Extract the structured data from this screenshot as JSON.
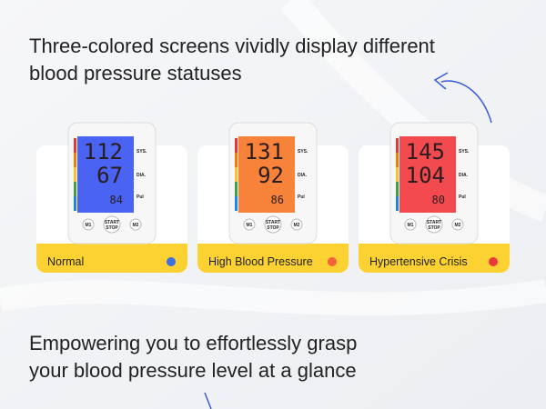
{
  "headline": "Three-colored screens vividly display different blood pressure statuses",
  "footer": "Empowering you to effortlessly grasp your blood pressure level at a glance",
  "device_labels": {
    "sys": "SYS.",
    "dia": "DIA.",
    "pul": "Pul",
    "start": "START",
    "stop": "STOP",
    "m1": "M1",
    "m2": "M2"
  },
  "cards": [
    {
      "label": "Normal",
      "screen_color": "#4a63f2",
      "dot_color": "#3f6fe0",
      "systolic": "112",
      "diastolic": "67",
      "pulse": "84"
    },
    {
      "label": "High Blood Pressure",
      "screen_color": "#f7823a",
      "dot_color": "#f4623a",
      "systolic": "131",
      "diastolic": "92",
      "pulse": "86"
    },
    {
      "label": "Hypertensive Crisis",
      "screen_color": "#f24a4f",
      "dot_color": "#e83a3a",
      "systolic": "145",
      "diastolic": "104",
      "pulse": "80"
    }
  ]
}
